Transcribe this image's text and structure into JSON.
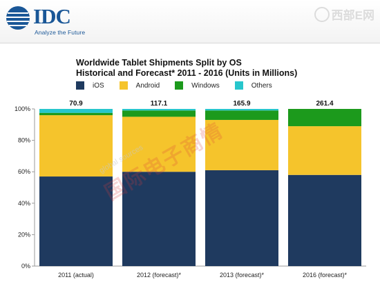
{
  "header": {
    "logo_text": "IDC",
    "tagline": "Analyze the Future",
    "site_watermark": "西部E网"
  },
  "overlay_watermark": "国际电子商情",
  "overlay_watermark_small": "global sources",
  "colors": {
    "ios": "#1f3a5f",
    "android": "#f5c42c",
    "windows": "#1c9a1c",
    "others": "#27c6cc",
    "brand": "#1a5797"
  },
  "chart_data": {
    "type": "bar",
    "stacked": true,
    "normalized": true,
    "title": "Worldwide Tablet Shipments Split by OS",
    "subtitle": "Historical and Forecast* 2011 - 2016 (Units in Millions)",
    "categories": [
      "2011 (actual)",
      "2012 (forecast)*",
      "2013 (forecast)*",
      "2016 (forecast)*"
    ],
    "totals": [
      "70.9",
      "117.1",
      "165.9",
      "261.4"
    ],
    "series": [
      {
        "name": "iOS",
        "values": [
          57,
          60,
          61,
          58
        ]
      },
      {
        "name": "Android",
        "values": [
          39,
          35,
          32,
          31
        ]
      },
      {
        "name": "Windows",
        "values": [
          1.5,
          4,
          6,
          11
        ]
      },
      {
        "name": "Others",
        "values": [
          2.5,
          1,
          1,
          0
        ]
      }
    ],
    "yticks": [
      "0%",
      "20%",
      "40%",
      "60%",
      "80%",
      "100%"
    ],
    "ylim": [
      0,
      100
    ],
    "legend_position": "top"
  }
}
